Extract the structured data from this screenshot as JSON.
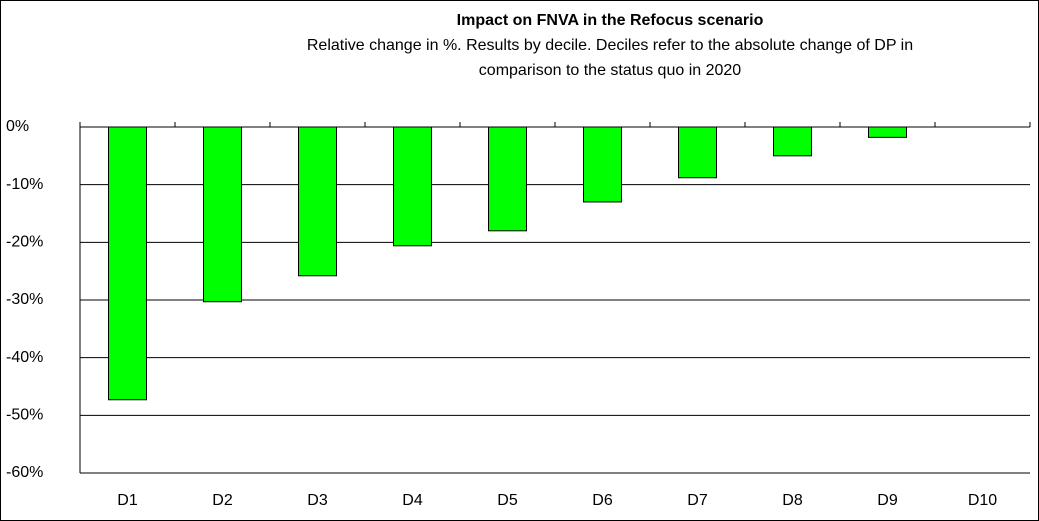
{
  "chart_data": {
    "type": "bar",
    "title": "Impact on FNVA in the Refocus scenario",
    "subtitle": [
      "Relative change in %. Results by decile. Deciles refer to the absolute change of DP in",
      "comparison to the status quo in 2020"
    ],
    "categories": [
      "D1",
      "D2",
      "D3",
      "D4",
      "D5",
      "D6",
      "D7",
      "D8",
      "D9",
      "D10"
    ],
    "values": [
      -47.3,
      -30.3,
      -25.8,
      -20.6,
      -18.0,
      -13.0,
      -8.8,
      -5.0,
      -1.8,
      0
    ],
    "color": "#00ff00",
    "ylim": [
      -60,
      0
    ],
    "yticks": [
      {
        "value": 0,
        "label": "0%"
      },
      {
        "value": -10,
        "label": "-10%"
      },
      {
        "value": -20,
        "label": "-20%"
      },
      {
        "value": -30,
        "label": "-30%"
      },
      {
        "value": -40,
        "label": "-40%"
      },
      {
        "value": -50,
        "label": "-50%"
      },
      {
        "value": -60,
        "label": "-60%"
      }
    ],
    "grid": true
  }
}
